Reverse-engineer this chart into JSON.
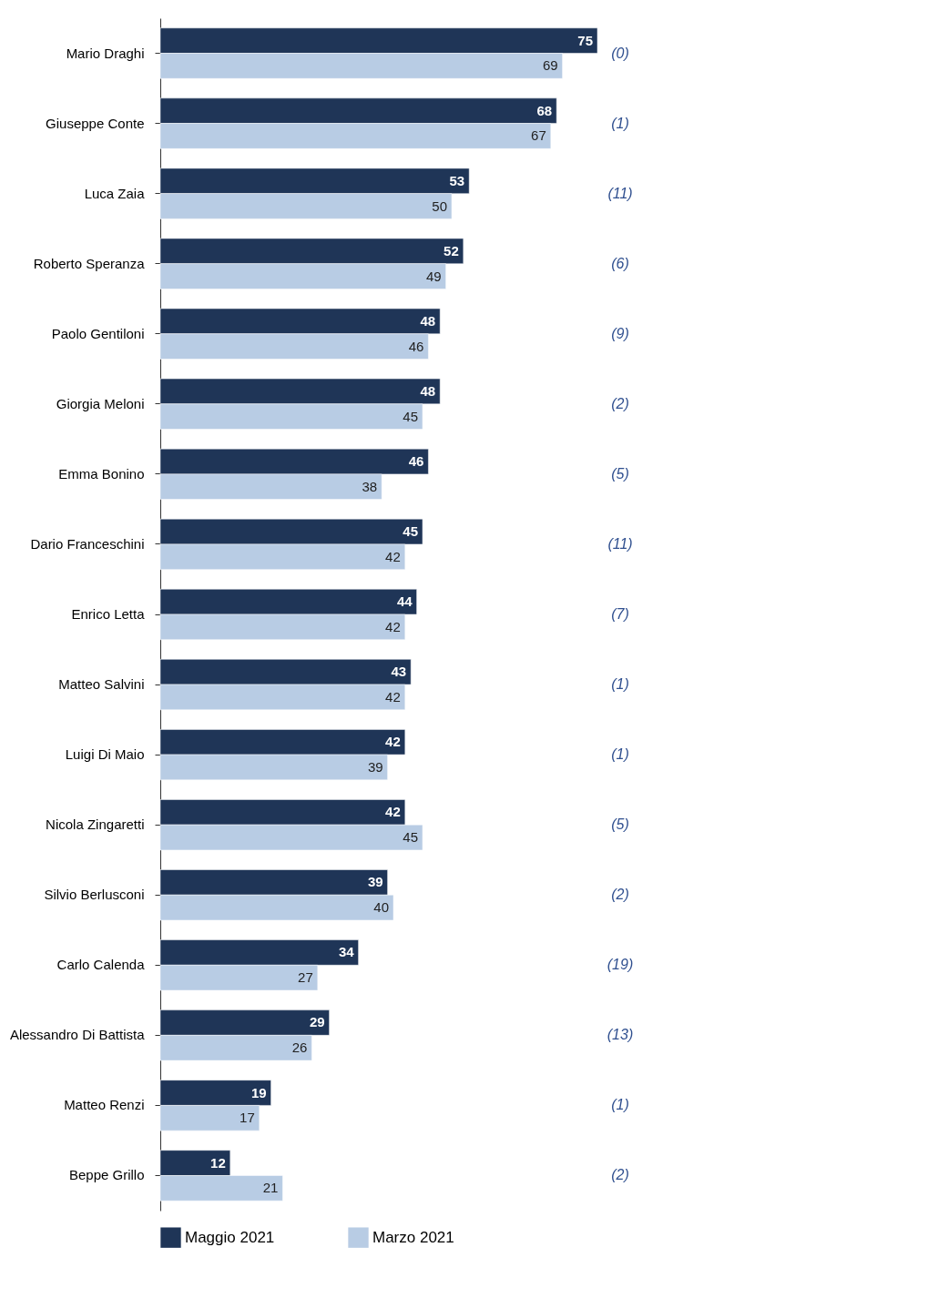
{
  "chart_data": {
    "type": "bar",
    "orientation": "horizontal",
    "data_labels": true,
    "legend": "bottom",
    "categories": [
      "Mario Draghi",
      "Giuseppe Conte",
      "Luca Zaia",
      "Roberto Speranza",
      "Paolo Gentiloni",
      "Giorgia Meloni",
      "Emma Bonino",
      "Dario Franceschini",
      "Enrico Letta",
      "Matteo Salvini",
      "Luigi Di Maio",
      "Nicola Zingaretti",
      "Silvio Berlusconi",
      "Carlo Calenda",
      "Alessandro Di Battista",
      "Matteo Renzi",
      "Beppe Grillo"
    ],
    "series": [
      {
        "name": "Maggio 2021",
        "color": "#1f3557",
        "values": [
          75,
          68,
          53,
          52,
          48,
          48,
          46,
          45,
          44,
          43,
          42,
          42,
          39,
          34,
          29,
          19,
          12
        ]
      },
      {
        "name": "Marzo 2021",
        "color": "#b8cce4",
        "values": [
          69,
          67,
          50,
          49,
          46,
          45,
          38,
          42,
          42,
          42,
          39,
          45,
          40,
          27,
          26,
          17,
          21
        ]
      }
    ],
    "annotations": [
      "(0)",
      "(1)",
      "(11)",
      "(6)",
      "(9)",
      "(2)",
      "(5)",
      "(11)",
      "(7)",
      "(1)",
      "(1)",
      "(5)",
      "(2)",
      "(19)",
      "(13)",
      "(1)",
      "(2)"
    ]
  }
}
